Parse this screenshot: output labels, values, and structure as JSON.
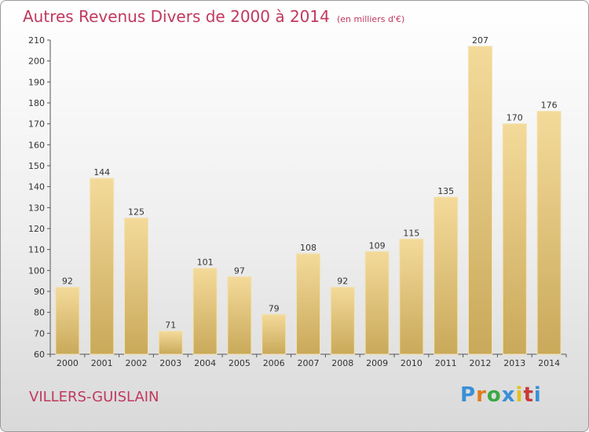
{
  "header": {
    "title": "Autres Revenus Divers de 2000 à 2014",
    "subtitle": "(en milliers d'€)"
  },
  "footer": {
    "commune": "VILLERS-GUISLAIN",
    "logo_letters": [
      "P",
      "r",
      "o",
      "x",
      "i",
      "t",
      "i"
    ],
    "logo_colors": [
      "#3a8fd6",
      "#e07b1f",
      "#3aa845",
      "#3a8fd6",
      "#e0c21f",
      "#c83b3b",
      "#3a8fd6"
    ]
  },
  "chart_data": {
    "type": "bar",
    "title": "Autres Revenus Divers de 2000 à 2014",
    "subtitle": "(en milliers d'€)",
    "categories": [
      "2000",
      "2001",
      "2002",
      "2003",
      "2004",
      "2005",
      "2006",
      "2007",
      "2008",
      "2009",
      "2010",
      "2011",
      "2012",
      "2013",
      "2014"
    ],
    "values": [
      92,
      144,
      125,
      71,
      101,
      97,
      79,
      108,
      92,
      109,
      115,
      135,
      207,
      170,
      176
    ],
    "ylim": [
      60,
      210
    ],
    "yticks": [
      60,
      70,
      80,
      90,
      100,
      110,
      120,
      130,
      140,
      150,
      160,
      170,
      180,
      190,
      200,
      210
    ],
    "grid": false,
    "bar_color": "#e8ca84"
  }
}
